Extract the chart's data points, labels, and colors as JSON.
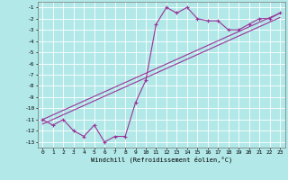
{
  "xlabel": "Windchill (Refroidissement éolien,°C)",
  "background_color": "#b2e8e8",
  "grid_color": "#ffffff",
  "line_color": "#993399",
  "hours": [
    0,
    1,
    2,
    3,
    4,
    5,
    6,
    7,
    8,
    9,
    10,
    11,
    12,
    13,
    14,
    15,
    16,
    17,
    18,
    19,
    20,
    21,
    22,
    23
  ],
  "windchill": [
    -11,
    -11.5,
    -11,
    -12,
    -12.5,
    -11.5,
    -13,
    -12.5,
    -12.5,
    -9.5,
    -7.5,
    -2.5,
    -1,
    -1.5,
    -1,
    -2,
    -2.2,
    -2.2,
    -3,
    -3,
    -2.5,
    -2,
    -2,
    -1.5
  ],
  "straight_line_x": [
    0,
    23
  ],
  "straight_line_y": [
    -11,
    -1.5
  ],
  "straight_line2_y": [
    -11.4,
    -1.9
  ],
  "ylim": [
    -13.5,
    -0.5
  ],
  "xlim": [
    -0.5,
    23.5
  ],
  "yticks": [
    -13,
    -12,
    -11,
    -10,
    -9,
    -8,
    -7,
    -6,
    -5,
    -4,
    -3,
    -2,
    -1
  ],
  "xticks": [
    0,
    1,
    2,
    3,
    4,
    5,
    6,
    7,
    8,
    9,
    10,
    11,
    12,
    13,
    14,
    15,
    16,
    17,
    18,
    19,
    20,
    21,
    22,
    23
  ]
}
